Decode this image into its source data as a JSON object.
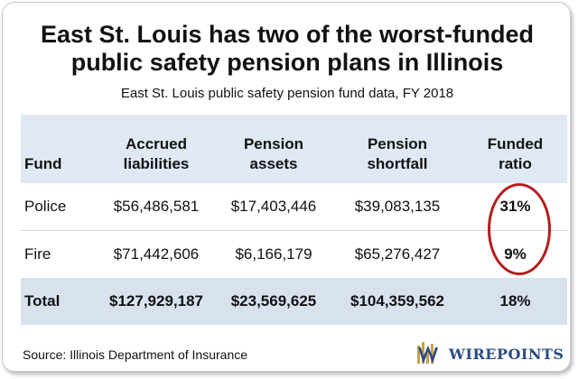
{
  "title_line1": "East St. Louis has two of the worst-funded",
  "title_line2": "public safety pension plans in Illinois",
  "subtitle": "East St. Louis public safety pension fund data, FY 2018",
  "source": "Source: Illinois Department of Insurance",
  "logo_text": "WIREPOINTS",
  "colors": {
    "header_bg": "#dfe8f3",
    "total_bg": "#d8e2ef",
    "highlight_circle": "#b51c1c",
    "logo_blue": "#2a4a82",
    "logo_gold": "#c8a24a"
  },
  "chart_data": {
    "type": "table",
    "title": "East St. Louis has two of the worst-funded public safety pension plans in Illinois",
    "subtitle": "East St. Louis public safety pension fund data, FY 2018",
    "columns": [
      "Fund",
      "Accrued\nliabilities",
      "Pension\nassets",
      "Pension\nshortfall",
      "Funded\nratio"
    ],
    "rows": [
      [
        "Police",
        "$56,486,581",
        "$17,403,446",
        "$39,083,135",
        "31%"
      ],
      [
        "Fire",
        "$71,442,606",
        "$6,166,179",
        "$65,276,427",
        "9%"
      ]
    ],
    "total": [
      "Total",
      "$127,929,187",
      "$23,569,625",
      "$104,359,562",
      "18%"
    ],
    "highlighted_column": "Funded ratio",
    "source": "Source: Illinois Department of Insurance"
  }
}
